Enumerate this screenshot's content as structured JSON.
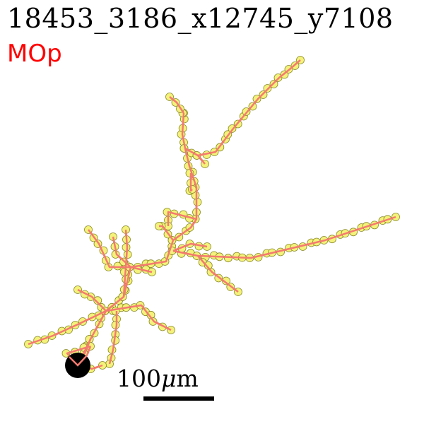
{
  "title": "18453_3186_x12745_y7108",
  "region": "MOp",
  "scale": {
    "value": "100",
    "unit_prefix": "μ",
    "unit_suffix": "m"
  },
  "colors": {
    "edge": "#f47a70",
    "node_fill": "#f4f27a",
    "node_stroke": "#8a8a2a",
    "soma": "#000000",
    "region": "#ff0000"
  }
}
